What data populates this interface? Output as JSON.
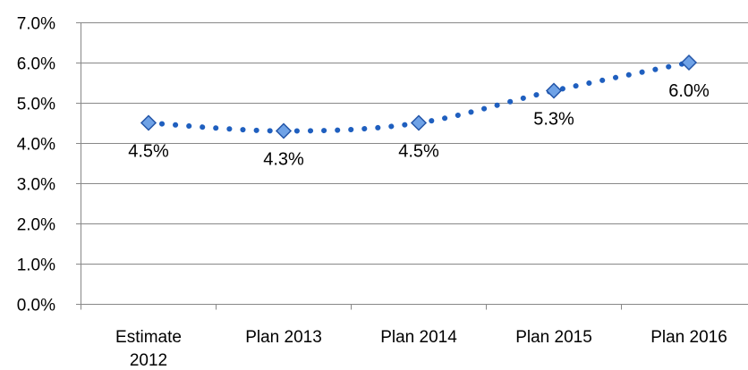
{
  "chart_data": {
    "type": "line",
    "title": "",
    "xlabel": "",
    "ylabel": "",
    "categories": [
      "Estimate 2012",
      "Plan 2013",
      "Plan 2014",
      "Plan 2015",
      "Plan 2016"
    ],
    "category_lines": [
      [
        "Estimate",
        "2012"
      ],
      [
        "Plan 2013"
      ],
      [
        "Plan 2014"
      ],
      [
        "Plan 2015"
      ],
      [
        "Plan 2016"
      ]
    ],
    "series": [
      {
        "values": [
          4.5,
          4.3,
          4.5,
          5.3,
          6.0
        ],
        "data_labels": [
          "4.5%",
          "4.3%",
          "4.5%",
          "5.3%",
          "6.0%"
        ],
        "data_label_position": [
          "below",
          "below",
          "below",
          "below",
          "below"
        ],
        "color": "#1f5fbf",
        "line_style": "dotted",
        "marker": "diamond"
      }
    ],
    "ylim": [
      0,
      7
    ],
    "y_ticks": [
      0,
      1,
      2,
      3,
      4,
      5,
      6,
      7
    ],
    "y_tick_labels": [
      "0.0%",
      "1.0%",
      "2.0%",
      "3.0%",
      "4.0%",
      "5.0%",
      "6.0%",
      "7.0%"
    ],
    "grid": true,
    "legend": "none",
    "colors": {
      "line": "#1f5fbf",
      "marker_fill": "#6fa2e6",
      "marker_stroke": "#2355a8",
      "grid": "#888888",
      "axis": "#888888",
      "text": "#000000"
    }
  }
}
